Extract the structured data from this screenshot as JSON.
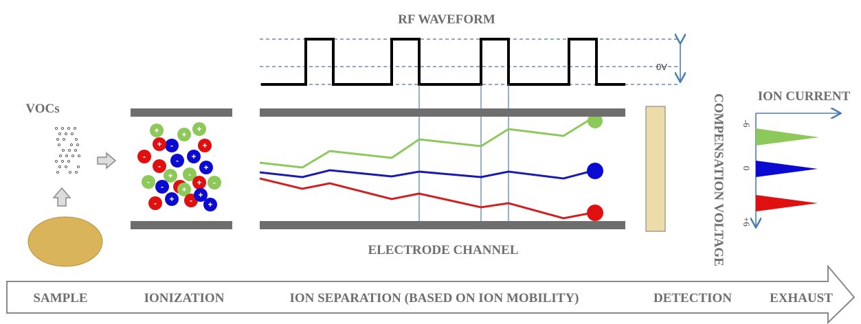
{
  "header": {
    "title": "RF WAVEFORM",
    "zero_label": "0V"
  },
  "sample": {
    "label": "VOCs"
  },
  "channel": {
    "label": "ELECTRODE CHANNEL"
  },
  "ions": [
    "+",
    "-",
    "+",
    "+",
    "-",
    "+",
    "+",
    "-",
    "-",
    "+",
    "+",
    "-",
    "+",
    "-",
    "-",
    "+",
    "+",
    "-",
    "+",
    "-",
    "+",
    "-",
    "+",
    "+"
  ],
  "detector": {
    "x_label": "ION CURRENT",
    "y_label": "COMPENSATION VOLTAGE",
    "ticks": [
      "-6",
      "0",
      "+6"
    ]
  },
  "stages": [
    "SAMPLE",
    "IONIZATION",
    "ION SEPARATION (BASED ON ION MOBILITY)",
    "DETECTION",
    "EXHAUST"
  ]
}
